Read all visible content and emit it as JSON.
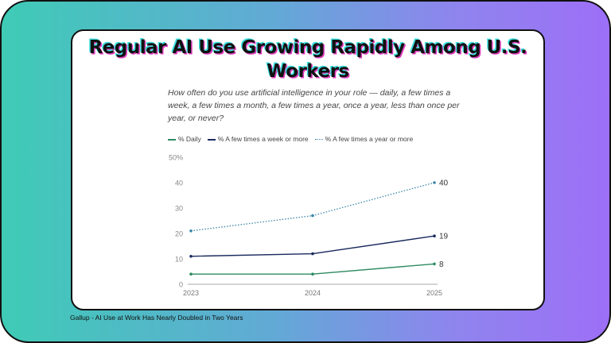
{
  "card": {
    "title": "Regular AI Use Growing Rapidly Among U.S. Workers",
    "subtitle": "How often do you use artificial intelligence in your role — daily, a few times a week, a few times a month, a few times a year, once a year, less than once per year, or never?"
  },
  "footer": "Gallup - AI Use at Work Has Nearly Doubled in Two Years",
  "chart_data": {
    "type": "line",
    "x": [
      "2023",
      "2024",
      "2025"
    ],
    "ylim": [
      0,
      50
    ],
    "yticks": [
      "0",
      "10",
      "20",
      "30",
      "40",
      "50%"
    ],
    "grid": false,
    "legend": "top-left",
    "series": [
      {
        "name": "% Daily",
        "values": [
          4,
          4,
          8
        ],
        "color": "#2e8b62",
        "style": "solid",
        "end_label": "8"
      },
      {
        "name": "% A few times a week or more",
        "values": [
          11,
          12,
          19
        ],
        "color": "#1a2a5e",
        "style": "solid",
        "end_label": "19"
      },
      {
        "name": "% A few times a year or more",
        "values": [
          21,
          27,
          40
        ],
        "color": "#3a86a8",
        "style": "dotted",
        "end_label": "40"
      }
    ]
  }
}
